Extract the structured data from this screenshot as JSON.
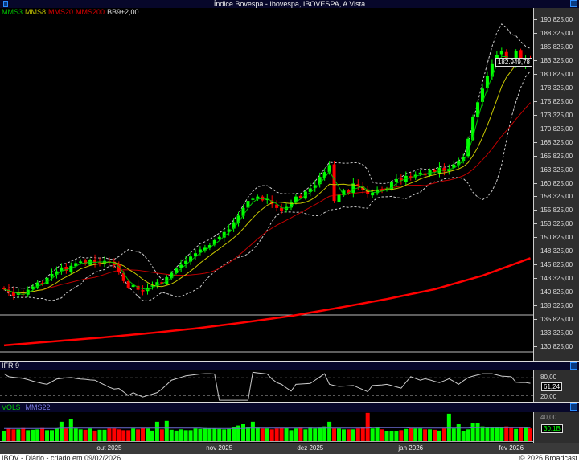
{
  "window": {
    "title": "Índice Bovespa - Ibovespa, IBOVESPA, A Vista"
  },
  "legend": {
    "mms3": "MMS3",
    "mms8": "MMS8",
    "mms20": "MMS20",
    "mms200": "MMS200",
    "bb": "BB9±2,00"
  },
  "colors": {
    "up": "#00ff00",
    "down": "#ff0000",
    "mms3": "#00c000",
    "mms8": "#c8c800",
    "mms20": "#c00000",
    "mms200": "#ff0000",
    "bb": "#cccccc",
    "rsi": "#cccccc",
    "vol_avg": "#6a6ad0",
    "title_bar": "#07072a"
  },
  "chart_data": [
    {
      "type": "candlestick",
      "title": "Índice Bovespa - Ibovespa, IBOVESPA, A Vista",
      "ylim": [
        129000,
        192000
      ],
      "yticks": [
        190825,
        188325,
        185825,
        183325,
        180825,
        178325,
        175825,
        173325,
        170825,
        168325,
        165825,
        163325,
        160825,
        158325,
        155825,
        153325,
        150825,
        148325,
        145825,
        143325,
        140825,
        138325,
        135825,
        133325,
        130825
      ],
      "ytick_labels": [
        "190.825,00",
        "188.325,00",
        "185.825,00",
        "183.325,00",
        "180.825,00",
        "178.325,00",
        "175.825,00",
        "173.325,00",
        "170.825,00",
        "168.325,00",
        "165.825,00",
        "163.325,00",
        "160.825,00",
        "158.325,00",
        "155.825,00",
        "153.325,00",
        "150.825,00",
        "148.325,00",
        "145.825,00",
        "143.325,00",
        "140.825,00",
        "138.325,00",
        "135.825,00",
        "133.325,00",
        "130.825,00"
      ],
      "last_price": 182949.78,
      "last_price_label": "182.949,78",
      "close": [
        141300,
        140800,
        140100,
        140600,
        140300,
        141200,
        141800,
        142500,
        142200,
        143400,
        144100,
        144600,
        145300,
        144700,
        145600,
        146100,
        146400,
        145900,
        146700,
        146100,
        146200,
        146500,
        146300,
        145700,
        144400,
        142800,
        141600,
        142100,
        141200,
        140900,
        141600,
        142000,
        142600,
        142200,
        143500,
        144300,
        145100,
        145800,
        146500,
        147300,
        147900,
        148600,
        148900,
        149400,
        150300,
        150900,
        151800,
        152300,
        153600,
        154800,
        156200,
        157500,
        157900,
        158300,
        157600,
        157800,
        156900,
        156200,
        155700,
        156400,
        157200,
        158300,
        158100,
        159200,
        159800,
        160400,
        161900,
        162800,
        164100,
        157500,
        158600,
        159400,
        158800,
        160700,
        160200,
        159500,
        158700,
        159000,
        159600,
        159300,
        159700,
        160900,
        161500,
        161200,
        162100,
        161800,
        162300,
        162700,
        162200,
        163100,
        162800,
        163600,
        162900,
        163400,
        164200,
        164800,
        165600,
        168900,
        173000,
        175600,
        178100,
        180400,
        182600,
        184300,
        185000,
        182600,
        182100,
        185000,
        182600,
        183200,
        182949.78
      ],
      "mms200": {
        "index": [
          0,
          10,
          20,
          30,
          40,
          50,
          60,
          70,
          80,
          90,
          100,
          110
        ],
        "values": [
          131000,
          131700,
          132400,
          133200,
          134100,
          135200,
          136400,
          137900,
          139500,
          141300,
          143800,
          147000
        ]
      },
      "indicators": [
        "MMS3",
        "MMS8",
        "MMS20",
        "MMS200",
        "BB9±2,00"
      ]
    },
    {
      "type": "line",
      "title": "IFR 9",
      "ylim": [
        0,
        100
      ],
      "ref_lines": [
        80,
        20
      ],
      "ref_labels": [
        "80,00",
        "20,00"
      ],
      "last_label": "61,24",
      "values": [
        94,
        84,
        82,
        80,
        78,
        74,
        69,
        65,
        61,
        58,
        67,
        76,
        78,
        80,
        81,
        78,
        76,
        75,
        73,
        72,
        64,
        56,
        48,
        42,
        44,
        32,
        20,
        30,
        22,
        15,
        20,
        25,
        30,
        42,
        57,
        72,
        77,
        82,
        87,
        89,
        91,
        93,
        94,
        94,
        93,
        4,
        4,
        4,
        4,
        4,
        4,
        4,
        99,
        97,
        95,
        93,
        76,
        64,
        58,
        46,
        35,
        58,
        59,
        60,
        61,
        72,
        83,
        94,
        58,
        54,
        51,
        52,
        53,
        54,
        47,
        40,
        33,
        54,
        55,
        56,
        58,
        54,
        49,
        45,
        65,
        84,
        78,
        72,
        77,
        73,
        68,
        64,
        70,
        77,
        68,
        58,
        70,
        81,
        86,
        90,
        94,
        94,
        94,
        90,
        86,
        85,
        84,
        65,
        64,
        64,
        61.24
      ]
    },
    {
      "type": "bar",
      "title": "VOL$",
      "avg_name": "MMS22",
      "tick_label": "40,00",
      "last_label": "30,1B",
      "values": [
        24,
        30,
        28,
        28,
        31,
        26,
        27,
        28,
        31,
        26,
        26,
        30,
        46,
        30,
        53,
        30,
        28,
        27,
        30,
        25,
        27,
        27,
        30,
        30,
        28,
        26,
        26,
        30,
        28,
        31,
        30,
        25,
        46,
        28,
        48,
        27,
        25,
        28,
        26,
        26,
        30,
        29,
        31,
        30,
        30,
        29,
        28,
        29,
        34,
        37,
        40,
        34,
        46,
        32,
        30,
        30,
        28,
        30,
        31,
        31,
        26,
        30,
        32,
        28,
        32,
        30,
        32,
        35,
        46,
        30,
        30,
        28,
        28,
        28,
        30,
        33,
        67,
        30,
        34,
        28,
        24,
        24,
        24,
        26,
        29,
        31,
        30,
        30,
        28,
        28,
        27,
        25,
        30,
        65,
        30,
        40,
        23,
        28,
        43,
        43,
        35,
        33,
        33,
        33,
        33,
        35,
        31,
        29,
        33,
        33,
        30.1
      ],
      "avg": [
        30,
        30,
        30,
        30,
        30,
        30,
        30,
        30,
        30,
        30,
        30,
        30,
        31,
        31,
        31,
        31,
        31,
        31,
        31,
        31,
        31,
        31,
        31,
        31,
        31,
        31,
        31,
        31,
        31,
        31,
        31,
        31,
        31,
        31,
        31,
        31,
        31,
        31,
        31,
        31,
        31,
        31,
        30,
        30,
        30,
        30,
        30,
        30,
        30,
        30,
        30,
        31,
        31,
        31,
        31,
        31,
        31,
        31,
        31,
        31,
        31,
        31,
        31,
        31,
        31,
        31,
        31,
        31,
        31,
        31,
        31,
        31,
        31,
        31,
        31,
        31,
        31,
        32,
        32,
        32,
        32,
        32,
        32,
        32,
        32,
        31,
        31,
        31,
        31,
        31,
        31,
        31,
        31,
        31,
        31,
        31,
        31,
        31,
        32,
        32,
        32,
        32,
        32,
        32,
        32,
        32,
        32,
        32,
        32,
        32,
        32
      ]
    },
    {
      "type": "axis",
      "month_labels": [
        {
          "label": "out 2025",
          "index": 22
        },
        {
          "label": "nov 2025",
          "index": 45
        },
        {
          "label": "dez 2025",
          "index": 64
        },
        {
          "label": "jan 2026",
          "index": 85
        },
        {
          "label": "fev 2026",
          "index": 106
        }
      ]
    }
  ],
  "rsi_panel": {
    "title": "IFR 9"
  },
  "vol_panel": {
    "title": "VOL$",
    "avg": "MMS22"
  },
  "footer": {
    "left": "IBOV - Diário - criado em 09/02/2026",
    "right": "© 2026 Broadcast"
  }
}
